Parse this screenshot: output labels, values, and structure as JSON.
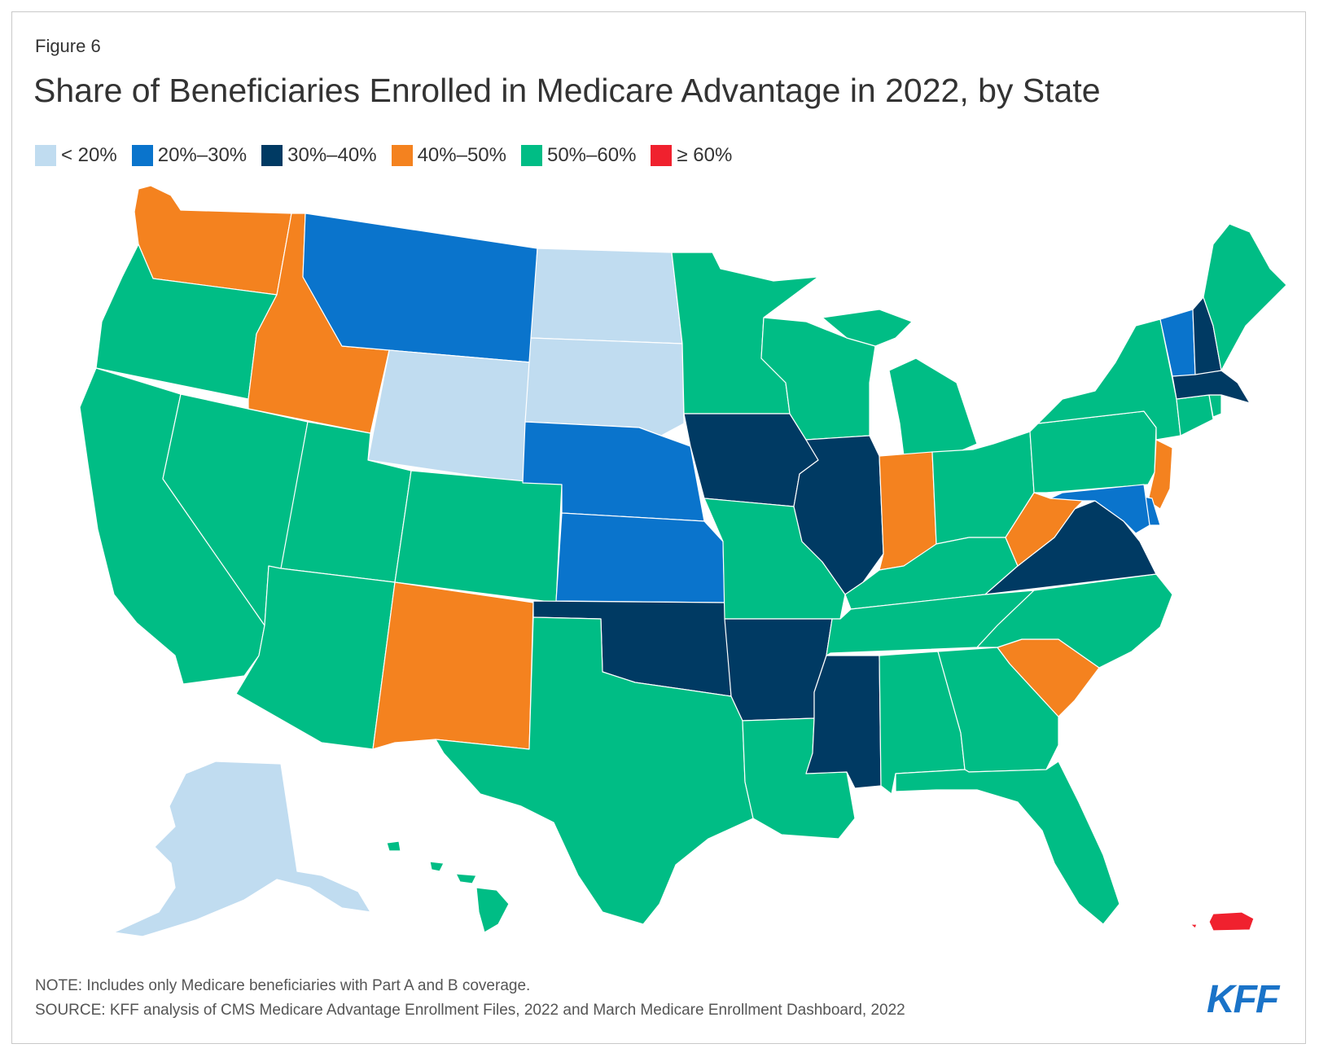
{
  "figure_label": "Figure 6",
  "title": "Share of Beneficiaries Enrolled in Medicare Advantage in 2022, by State",
  "legend": [
    {
      "label": "< 20%",
      "color": "#c0dcf0",
      "key": "lt20"
    },
    {
      "label": "20%–30%",
      "color": "#0a74cc",
      "key": "20to30"
    },
    {
      "label": "30%–40%",
      "color": "#003a63",
      "key": "30to40"
    },
    {
      "label": "40%–50%",
      "color": "#f4821f",
      "key": "40to50"
    },
    {
      "label": "50%–60%",
      "color": "#00bd85",
      "key": "50to60"
    },
    {
      "label": "≥ 60%",
      "color": "#f0212e",
      "key": "ge60"
    }
  ],
  "map_data": {
    "type": "choropleth",
    "states": {
      "WA": "40to50",
      "OR": "50to60",
      "CA": "50to60",
      "NV": "50to60",
      "ID": "40to50",
      "MT": "20to30",
      "WY": "lt20",
      "UT": "50to60",
      "AZ": "50to60",
      "CO": "50to60",
      "NM": "40to50",
      "ND": "lt20",
      "SD": "lt20",
      "NE": "20to30",
      "KS": "20to30",
      "OK": "30to40",
      "TX": "50to60",
      "MN": "50to60",
      "IA": "30to40",
      "MO": "50to60",
      "AR": "30to40",
      "LA": "50to60",
      "WI": "50to60",
      "IL": "30to40",
      "MI": "50to60",
      "IN": "40to50",
      "OH": "50to60",
      "KY": "50to60",
      "TN": "50to60",
      "MS": "30to40",
      "AL": "50to60",
      "GA": "50to60",
      "FL": "50to60",
      "SC": "40to50",
      "NC": "50to60",
      "VA": "30to40",
      "WV": "40to50",
      "PA": "50to60",
      "NY": "50to60",
      "NJ": "40to50",
      "DE": "20to30",
      "MD": "20to30",
      "DC": "20to30",
      "CT": "50to60",
      "RI": "50to60",
      "MA": "30to40",
      "VT": "20to30",
      "NH": "30to40",
      "ME": "50to60",
      "AK": "lt20",
      "HI": "50to60",
      "PR": "ge60"
    }
  },
  "note": "NOTE: Includes only Medicare beneficiaries with Part A and B coverage.",
  "source": "SOURCE: KFF analysis of CMS Medicare Advantage Enrollment Files, 2022 and March Medicare Enrollment Dashboard, 2022",
  "logo_text": "KFF"
}
